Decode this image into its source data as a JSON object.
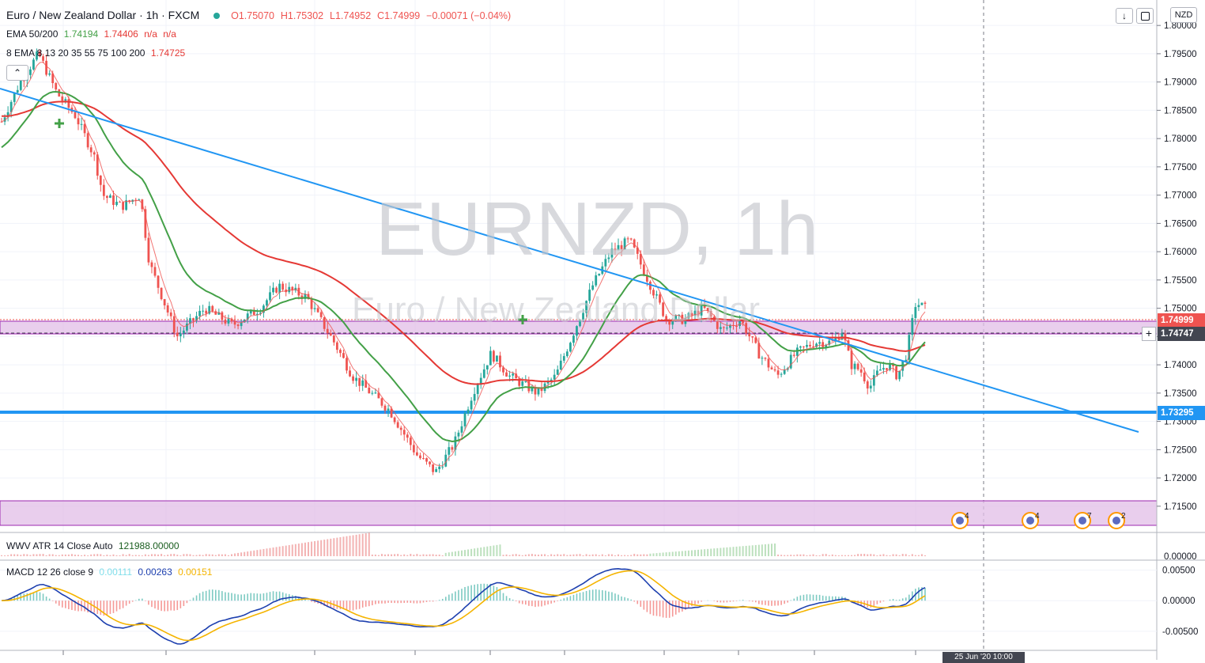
{
  "header": {
    "symbol_title": "Euro / New Zealand Dollar · 1h · FXCM",
    "ohlc": {
      "open": "O1.75070",
      "high": "H1.75302",
      "low": "L1.74952",
      "close": "C1.74999",
      "change": "−0.00071 (−0.04%)"
    },
    "ema_line": {
      "label": "EMA 50/200",
      "v1": "1.74194",
      "v2": "1.74406",
      "v3": "n/a",
      "v4": "n/a"
    },
    "ema_multi": {
      "label": "8 EMA 8 13 20 35 55 75 100 200",
      "value": "1.74725"
    }
  },
  "watermark": {
    "ticker": "EURNZD, 1h",
    "name": "Euro / New Zealand Dollar"
  },
  "currency_badge": "NZD",
  "price_tags": [
    {
      "label": "1.74999",
      "color": "#ef5350"
    },
    {
      "label": "1.74747",
      "color": "#434651"
    },
    {
      "label": "1.73295",
      "color": "#2196f3"
    }
  ],
  "atr_panel": {
    "label": "WWV ATR 14 Close Auto",
    "value": "121988.00000"
  },
  "macd_panel": {
    "label": "MACD 12 26 close 9",
    "hist": "0.00111",
    "macd": "0.00263",
    "signal": "0.00151"
  },
  "events": [
    "4",
    "4",
    "7",
    "2"
  ],
  "bottom_time_label": "25 Jun '20  10:00",
  "colors": {
    "up": "#26a69a",
    "down": "#ef5350",
    "ema50": "#43a047",
    "ema200": "#e53935",
    "trendline": "#2196f3",
    "zone": "#e1bee7",
    "support": "#2196f3"
  },
  "chart_data": {
    "type": "candlestick",
    "symbol": "EURNZD",
    "interval": "1h",
    "ylim": [
      1.7105,
      1.8045
    ],
    "y_ticks": [
      "1.80000",
      "1.79500",
      "1.79000",
      "1.78500",
      "1.78000",
      "1.77500",
      "1.77000",
      "1.76500",
      "1.76000",
      "1.75500",
      "1.75000",
      "1.74500",
      "1.74000",
      "1.73500",
      "1.73000",
      "1.72500",
      "1.72000",
      "1.71500"
    ],
    "approx_close_path": [
      [
        0,
        1.783
      ],
      [
        0.02,
        1.79
      ],
      [
        0.04,
        1.795
      ],
      [
        0.06,
        1.788
      ],
      [
        0.08,
        1.784
      ],
      [
        0.1,
        1.777
      ],
      [
        0.11,
        1.77
      ],
      [
        0.13,
        1.768
      ],
      [
        0.15,
        1.77
      ],
      [
        0.16,
        1.758
      ],
      [
        0.19,
        1.745
      ],
      [
        0.22,
        1.75
      ],
      [
        0.25,
        1.747
      ],
      [
        0.28,
        1.75
      ],
      [
        0.3,
        1.754
      ],
      [
        0.33,
        1.752
      ],
      [
        0.36,
        1.744
      ],
      [
        0.38,
        1.738
      ],
      [
        0.42,
        1.732
      ],
      [
        0.45,
        1.724
      ],
      [
        0.47,
        1.721
      ],
      [
        0.49,
        1.726
      ],
      [
        0.51,
        1.735
      ],
      [
        0.53,
        1.742
      ],
      [
        0.55,
        1.738
      ],
      [
        0.58,
        1.735
      ],
      [
        0.6,
        1.738
      ],
      [
        0.62,
        1.746
      ],
      [
        0.64,
        1.754
      ],
      [
        0.66,
        1.76
      ],
      [
        0.68,
        1.762
      ],
      [
        0.7,
        1.755
      ],
      [
        0.72,
        1.748
      ],
      [
        0.74,
        1.748
      ],
      [
        0.76,
        1.75
      ],
      [
        0.78,
        1.746
      ],
      [
        0.8,
        1.748
      ],
      [
        0.82,
        1.742
      ],
      [
        0.84,
        1.738
      ],
      [
        0.86,
        1.742
      ],
      [
        0.88,
        1.744
      ],
      [
        0.9,
        1.744
      ],
      [
        0.91,
        1.746
      ],
      [
        0.92,
        1.74
      ],
      [
        0.93,
        1.739
      ],
      [
        0.94,
        1.736
      ],
      [
        0.95,
        1.739
      ],
      [
        0.96,
        1.74
      ],
      [
        0.97,
        1.738
      ],
      [
        0.98,
        1.742
      ],
      [
        0.99,
        1.751
      ],
      [
        1.0,
        1.75
      ]
    ],
    "horizontal_levels": [
      1.73295
    ],
    "zones": [
      [
        1.74747,
        1.74999
      ],
      [
        1.7122,
        1.7168
      ]
    ],
    "macd": {
      "ylim": [
        -0.008,
        0.0065
      ],
      "y_ticks": [
        "0.00500",
        "0.00000",
        "-0.00500"
      ]
    },
    "atr": {
      "y_ticks": [
        "0.00000"
      ]
    }
  }
}
